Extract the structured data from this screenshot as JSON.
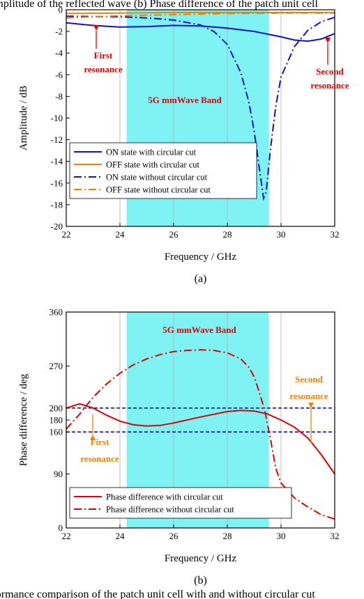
{
  "figure": {
    "top_caption": "(a)  Amplitude of the reflected wave (b) Phase difference of the patch unit cell",
    "bottom_caption": "erformance comparison of the patch unit cell with and without circular cut"
  },
  "chart_data": [
    {
      "type": "line",
      "panel_label": "(a)",
      "xlabel": "Frequency / GHz",
      "ylabel": "Amplitude / dB",
      "xlim": [
        22,
        32
      ],
      "ylim": [
        -20,
        0
      ],
      "xticks": [
        22,
        24,
        26,
        28,
        30,
        32
      ],
      "yticks": [
        0,
        -2,
        -4,
        -6,
        -8,
        -10,
        -12,
        -14,
        -16,
        -18,
        -20
      ],
      "grid": true,
      "legend_position": "bottom-left",
      "band": {
        "x": [
          24.25,
          29.55
        ],
        "label": "5G mmWave Band",
        "color": "#7ff3f3"
      },
      "annotations": [
        {
          "text": "First resonance",
          "lines": [
            "First",
            "resonance"
          ],
          "color": "#e00000"
        },
        {
          "text": "Second resonance",
          "lines": [
            "Second",
            "resonance"
          ],
          "color": "#e00000"
        }
      ],
      "series": [
        {
          "name": "ON state with circular cut",
          "color": "#1010d0",
          "dash": "solid",
          "points": [
            [
              22,
              -1.2
            ],
            [
              23,
              -1.45
            ],
            [
              24,
              -1.6
            ],
            [
              25,
              -1.55
            ],
            [
              26,
              -1.45
            ],
            [
              27,
              -1.5
            ],
            [
              28,
              -1.7
            ],
            [
              29,
              -2.0
            ],
            [
              30,
              -2.5
            ],
            [
              30.5,
              -2.8
            ],
            [
              31,
              -2.9
            ],
            [
              31.5,
              -2.7
            ],
            [
              32,
              -2.2
            ]
          ]
        },
        {
          "name": "OFF state with circular cut",
          "color": "#f08000",
          "dash": "solid",
          "points": [
            [
              22,
              -0.35
            ],
            [
              24,
              -0.3
            ],
            [
              26,
              -0.25
            ],
            [
              28,
              -0.25
            ],
            [
              30,
              -0.25
            ],
            [
              32,
              -0.25
            ]
          ]
        },
        {
          "name": "ON state without circular cut",
          "color": "#1010d0",
          "dash": "dashdot",
          "points": [
            [
              22,
              -0.6
            ],
            [
              24,
              -0.65
            ],
            [
              25,
              -0.75
            ],
            [
              26,
              -0.95
            ],
            [
              27,
              -1.4
            ],
            [
              27.5,
              -2.0
            ],
            [
              28,
              -3.2
            ],
            [
              28.5,
              -5.8
            ],
            [
              28.8,
              -8.5
            ],
            [
              29,
              -11.2
            ],
            [
              29.2,
              -14.8
            ],
            [
              29.35,
              -17.4
            ],
            [
              29.45,
              -16.8
            ],
            [
              29.6,
              -13.0
            ],
            [
              29.8,
              -9.0
            ],
            [
              30,
              -6.2
            ],
            [
              30.5,
              -3.4
            ],
            [
              31,
              -1.9
            ],
            [
              31.5,
              -1.1
            ],
            [
              32,
              -0.7
            ]
          ]
        },
        {
          "name": "OFF state without circular cut",
          "color": "#f08000",
          "dash": "dashdot",
          "points": [
            [
              22,
              -0.75
            ],
            [
              24,
              -0.55
            ],
            [
              26,
              -0.45
            ],
            [
              28,
              -0.35
            ],
            [
              30,
              -0.3
            ],
            [
              32,
              -0.3
            ]
          ]
        }
      ]
    },
    {
      "type": "line",
      "panel_label": "(b)",
      "xlabel": "Frequency / GHz",
      "ylabel": "Phase difference / deg",
      "xlim": [
        22,
        32
      ],
      "ylim": [
        0,
        360
      ],
      "xticks": [
        22,
        24,
        26,
        28,
        30,
        32
      ],
      "yticks": [
        0,
        90,
        160,
        180,
        200,
        270,
        360
      ],
      "grid": true,
      "legend_position": "bottom-left",
      "reference_lines": [
        200,
        160
      ],
      "reference_color": "#1010d0",
      "band": {
        "x": [
          24.25,
          29.55
        ],
        "label": "5G mmWave Band",
        "color": "#7ff3f3"
      },
      "annotations": [
        {
          "text": "First resonance",
          "lines": [
            "First",
            "resonance"
          ],
          "color": "#f08000"
        },
        {
          "text": "Second resonance",
          "lines": [
            "Second",
            "resonance"
          ],
          "color": "#f08000"
        }
      ],
      "series": [
        {
          "name": "Phase difference with circular cut",
          "color": "#e00000",
          "dash": "solid",
          "points": [
            [
              22,
              200
            ],
            [
              22.5,
              207
            ],
            [
              23,
              200
            ],
            [
              23.5,
              188
            ],
            [
              24,
              178
            ],
            [
              24.5,
              172
            ],
            [
              25,
              170
            ],
            [
              25.5,
              171
            ],
            [
              26,
              175
            ],
            [
              27,
              185
            ],
            [
              28,
              194
            ],
            [
              28.5,
              196
            ],
            [
              29,
              195
            ],
            [
              29.5,
              190
            ],
            [
              30,
              180
            ],
            [
              30.5,
              168
            ],
            [
              31,
              150
            ],
            [
              31.5,
              122
            ],
            [
              32,
              90
            ]
          ]
        },
        {
          "name": "Phase difference without circular cut",
          "color": "#e00000",
          "dash": "dashdot",
          "points": [
            [
              22,
              165
            ],
            [
              22.5,
              190
            ],
            [
              23,
              218
            ],
            [
              23.5,
              240
            ],
            [
              24,
              258
            ],
            [
              24.5,
              272
            ],
            [
              25,
              282
            ],
            [
              25.5,
              289
            ],
            [
              26,
              294
            ],
            [
              26.5,
              296
            ],
            [
              27,
              297
            ],
            [
              27.5,
              296
            ],
            [
              28,
              292
            ],
            [
              28.5,
              282
            ],
            [
              28.8,
              268
            ],
            [
              29,
              252
            ],
            [
              29.2,
              225
            ],
            [
              29.4,
              195
            ],
            [
              29.6,
              150
            ],
            [
              29.8,
              100
            ],
            [
              30,
              75
            ],
            [
              30.5,
              50
            ],
            [
              31,
              35
            ],
            [
              31.5,
              22
            ],
            [
              32,
              15
            ]
          ]
        }
      ]
    }
  ]
}
